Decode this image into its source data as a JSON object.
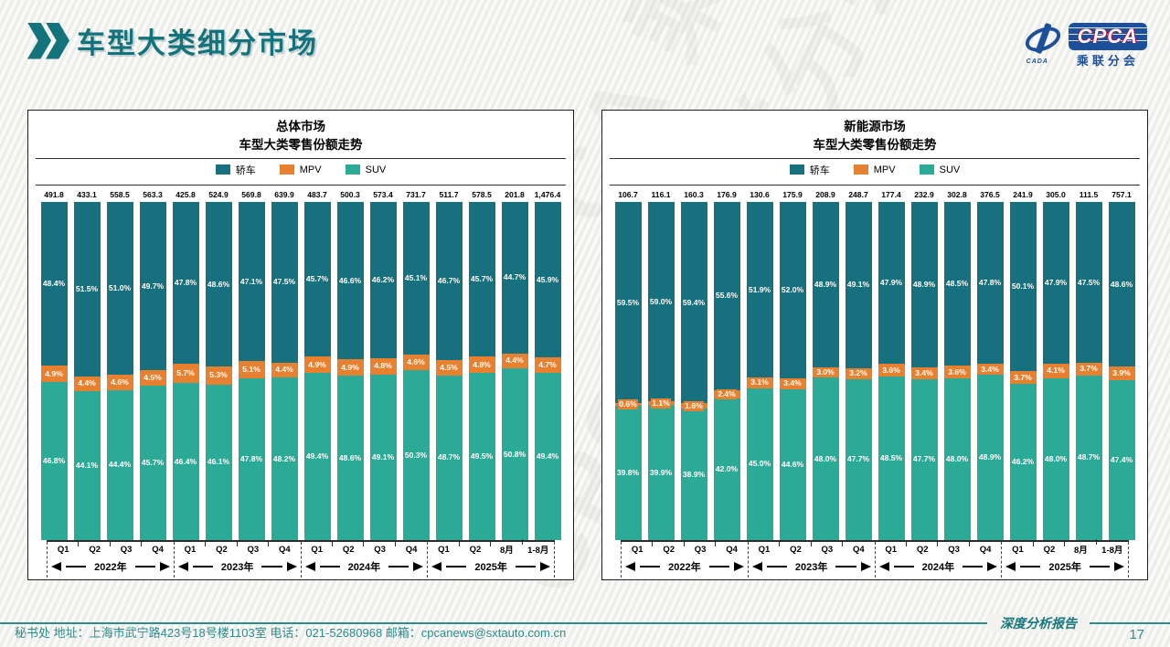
{
  "header": {
    "title": "车型大类细分市场"
  },
  "logo": {
    "emblem_caption": "CADA",
    "acronym": "CPCA",
    "subtitle": "乘联分会"
  },
  "watermark": "CPCA 乘联分会",
  "footer": {
    "left": "秘书处   地址：上海市武宁路423号18号楼1103室  电话：021-52680968   邮箱：cpcanews@sxtauto.com.cn",
    "report_label": "深度分析报告",
    "page_number": "17"
  },
  "chart_data": [
    {
      "type": "bar",
      "stacked_percent": true,
      "title_line1": "总体市场",
      "title_line2": "车型大类零售份额走势",
      "legend_position": "top",
      "grid": false,
      "ylim": [
        0,
        100
      ],
      "categories": [
        "Q1",
        "Q2",
        "Q3",
        "Q4",
        "Q1",
        "Q2",
        "Q3",
        "Q4",
        "Q1",
        "Q2",
        "Q3",
        "Q4",
        "Q1",
        "Q2",
        "8月",
        "1-8月"
      ],
      "groups": [
        {
          "label": "2022年",
          "span": 4
        },
        {
          "label": "2023年",
          "span": 4
        },
        {
          "label": "2024年",
          "span": 4
        },
        {
          "label": "2025年",
          "span": 4
        }
      ],
      "totals": [
        "491.8",
        "433.1",
        "558.5",
        "563.3",
        "425.8",
        "524.9",
        "569.8",
        "639.9",
        "483.7",
        "500.3",
        "573.4",
        "731.7",
        "511.7",
        "578.5",
        "201.8",
        "1,476.4"
      ],
      "series": [
        {
          "name": "轿车",
          "color": "#16707d",
          "values": [
            48.4,
            51.5,
            51.0,
            49.7,
            47.8,
            48.6,
            47.1,
            47.5,
            45.7,
            46.6,
            46.2,
            45.1,
            46.7,
            45.7,
            44.7,
            45.9
          ]
        },
        {
          "name": "MPV",
          "color": "#e8812f",
          "values": [
            4.9,
            4.4,
            4.6,
            4.5,
            5.7,
            5.3,
            5.1,
            4.4,
            4.9,
            4.9,
            4.8,
            4.6,
            4.5,
            4.8,
            4.4,
            4.7
          ]
        },
        {
          "name": "SUV",
          "color": "#2bab97",
          "values": [
            46.8,
            44.1,
            44.4,
            45.7,
            46.4,
            46.1,
            47.8,
            48.2,
            49.4,
            48.6,
            49.1,
            50.3,
            48.7,
            49.5,
            50.8,
            49.4
          ]
        }
      ]
    },
    {
      "type": "bar",
      "stacked_percent": true,
      "title_line1": "新能源市场",
      "title_line2": "车型大类零售份额走势",
      "legend_position": "top",
      "grid": false,
      "ylim": [
        0,
        100
      ],
      "categories": [
        "Q1",
        "Q2",
        "Q3",
        "Q4",
        "Q1",
        "Q2",
        "Q3",
        "Q4",
        "Q1",
        "Q2",
        "Q3",
        "Q4",
        "Q1",
        "Q2",
        "8月",
        "1-8月"
      ],
      "groups": [
        {
          "label": "2022年",
          "span": 4
        },
        {
          "label": "2023年",
          "span": 4
        },
        {
          "label": "2024年",
          "span": 4
        },
        {
          "label": "2025年",
          "span": 4
        }
      ],
      "totals": [
        "106.7",
        "116.1",
        "160.3",
        "176.9",
        "130.6",
        "175.9",
        "208.9",
        "248.7",
        "177.4",
        "232.9",
        "302.8",
        "376.5",
        "241.9",
        "305.0",
        "111.5",
        "757.1"
      ],
      "series": [
        {
          "name": "轿车",
          "color": "#16707d",
          "values": [
            59.5,
            59.0,
            59.4,
            55.6,
            51.9,
            52.0,
            48.9,
            49.1,
            47.9,
            48.9,
            48.5,
            47.8,
            50.1,
            47.9,
            47.5,
            48.6
          ]
        },
        {
          "name": "MPV",
          "color": "#e8812f",
          "values": [
            0.6,
            1.1,
            1.6,
            2.4,
            3.1,
            3.4,
            3.0,
            3.2,
            3.6,
            3.4,
            3.6,
            3.4,
            3.7,
            4.1,
            3.7,
            3.9
          ]
        },
        {
          "name": "SUV",
          "color": "#2bab97",
          "values": [
            39.8,
            39.9,
            38.9,
            42.0,
            45.0,
            44.6,
            48.0,
            47.7,
            48.5,
            47.7,
            48.0,
            48.9,
            46.2,
            48.0,
            48.7,
            47.4
          ]
        }
      ]
    }
  ]
}
